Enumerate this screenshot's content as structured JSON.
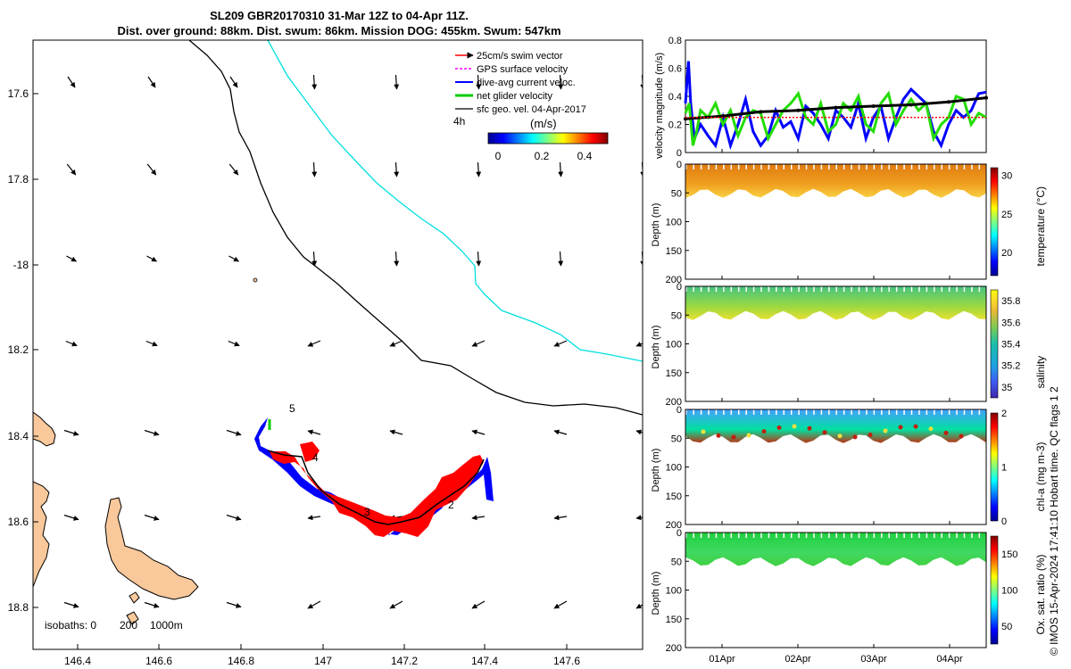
{
  "header": {
    "line1": "SL209 GBR20170310 31-Mar 12Z to 04-Apr 11Z.",
    "line2": "Dist. over ground: 88km. Dist. swum: 86km. Mission DOG: 455km. Swum: 547km"
  },
  "colors": {
    "swim": "#ff0000",
    "gps": "#ff00ff",
    "dive": "#0000ff",
    "net": "#00cc00",
    "geo": "#000000",
    "land": "#f9c89b",
    "isobath200": "#000000",
    "isobath1000": "#00e5e5"
  },
  "legend": {
    "items": [
      "25cm/s swim vector",
      "GPS surface velocity",
      "dive-avg current veloc.",
      "net glider velocity",
      "sfc geo. vel. 04-Apr-2017"
    ],
    "time_label": "4h",
    "colorbar_title": "(m/s)",
    "colorbar_ticks": [
      "0",
      "0.2",
      "0.4"
    ]
  },
  "isobaths": {
    "label": "isobaths: 0",
    "v1": "200",
    "v2": "1000m"
  },
  "axes": {
    "map_xticks": [
      "146.4",
      "146.6",
      "146.8",
      "147",
      "147.2",
      "147.4",
      "147.6"
    ],
    "map_yticks": [
      "17.6",
      "17.8",
      "-18",
      "18.2",
      "18.4",
      "18.6",
      "18.8"
    ],
    "time_ticks": [
      "01Apr",
      "02Apr",
      "03Apr",
      "04Apr"
    ],
    "depth_ticks": [
      "0",
      "50",
      "100",
      "150",
      "200"
    ]
  },
  "track_labels": [
    "5",
    "4",
    "3",
    "2"
  ],
  "side_text": "© IMOS 15-Apr-2024 17:41:10 Hobart time. QC flags 1  2",
  "chart_data": [
    {
      "type": "line",
      "title": "",
      "ylabel": "velocity magnitude (m/s)",
      "yticks": [
        "0",
        "0.2",
        "0.4",
        "0.6",
        "0.8"
      ],
      "ylim": [
        0,
        0.8
      ],
      "xlim": [
        0,
        4
      ],
      "series": [
        {
          "name": "dive-avg current veloc.",
          "color": "#0000ff",
          "x": [
            0,
            0.04,
            0.07,
            0.12,
            0.2,
            0.3,
            0.4,
            0.5,
            0.6,
            0.7,
            0.8,
            0.9,
            1.0,
            1.1,
            1.2,
            1.3,
            1.4,
            1.5,
            1.6,
            1.7,
            1.8,
            1.9,
            2.0,
            2.1,
            2.2,
            2.3,
            2.4,
            2.5,
            2.6,
            2.7,
            2.8,
            2.9,
            3.0,
            3.1,
            3.2,
            3.3,
            3.4,
            3.5,
            3.6,
            3.7,
            3.8,
            3.9,
            4.0
          ],
          "values": [
            0.35,
            0.65,
            0.35,
            0.1,
            0.2,
            0.12,
            0.05,
            0.25,
            0.05,
            0.2,
            0.38,
            0.15,
            0.05,
            0.12,
            0.3,
            0.18,
            0.22,
            0.1,
            0.33,
            0.28,
            0.2,
            0.1,
            0.3,
            0.25,
            0.18,
            0.35,
            0.1,
            0.25,
            0.33,
            0.1,
            0.25,
            0.38,
            0.45,
            0.4,
            0.35,
            0.15,
            0.05,
            0.2,
            0.3,
            0.25,
            0.3,
            0.42,
            0.43
          ]
        },
        {
          "name": "net glider velocity",
          "color": "#22dd00",
          "x": [
            0,
            0.05,
            0.1,
            0.15,
            0.2,
            0.3,
            0.4,
            0.5,
            0.6,
            0.7,
            0.8,
            0.9,
            1.0,
            1.1,
            1.2,
            1.3,
            1.4,
            1.5,
            1.6,
            1.7,
            1.8,
            1.9,
            2.0,
            2.1,
            2.2,
            2.3,
            2.4,
            2.5,
            2.6,
            2.7,
            2.8,
            2.9,
            3.0,
            3.1,
            3.2,
            3.3,
            3.4,
            3.5,
            3.6,
            3.7,
            3.8,
            3.9,
            4.0
          ],
          "values": [
            0.28,
            0.35,
            0.05,
            0.15,
            0.3,
            0.25,
            0.35,
            0.2,
            0.3,
            0.12,
            0.25,
            0.3,
            0.28,
            0.1,
            0.2,
            0.3,
            0.35,
            0.42,
            0.25,
            0.2,
            0.35,
            0.15,
            0.2,
            0.35,
            0.3,
            0.4,
            0.2,
            0.15,
            0.35,
            0.42,
            0.2,
            0.3,
            0.38,
            0.3,
            0.35,
            0.1,
            0.2,
            0.25,
            0.4,
            0.38,
            0.2,
            0.28,
            0.25
          ]
        },
        {
          "name": "sfc geo. vel.",
          "color": "#000000",
          "x": [
            0,
            0.5,
            1.0,
            1.5,
            2.0,
            2.5,
            3.0,
            3.5,
            4.0
          ],
          "values": [
            0.24,
            0.26,
            0.29,
            0.3,
            0.32,
            0.33,
            0.34,
            0.36,
            0.39
          ]
        },
        {
          "name": "swim",
          "color": "#ff0000",
          "x": [
            0,
            1,
            2,
            3,
            4
          ],
          "values": [
            0.25,
            0.25,
            0.25,
            0.25,
            0.25
          ]
        }
      ]
    },
    {
      "type": "heatmap",
      "ylabel": "Depth (m)",
      "colorbar_label": "temperature (°C)",
      "colorbar_ticks": [
        "30",
        "25",
        "20"
      ],
      "clim": [
        17,
        31
      ],
      "surface": 29.2,
      "deep": 26.2,
      "bottom_depth": 60
    },
    {
      "type": "heatmap",
      "ylabel": "Depth (m)",
      "colorbar_label": "salinity",
      "colorbar_ticks": [
        "35.8",
        "35.6",
        "35.4",
        "35.2",
        "35"
      ],
      "clim": [
        34.9,
        35.9
      ],
      "surface": 35.25,
      "deep": 35.5,
      "bottom_depth": 60
    },
    {
      "type": "heatmap",
      "ylabel": "Depth (m)",
      "colorbar_label": "chl-a (mg m-3)",
      "colorbar_ticks": [
        "2",
        "1",
        "0"
      ],
      "clim": [
        0,
        2
      ],
      "surface": 0.55,
      "deep": 1.9,
      "bottom_depth": 60
    },
    {
      "type": "heatmap",
      "ylabel": "Depth (m)",
      "colorbar_label": "Ox. sat. ratio (%)",
      "colorbar_ticks": [
        "150",
        "100",
        "50"
      ],
      "clim": [
        25,
        175
      ],
      "surface": 95,
      "deep": 93,
      "bottom_depth": 60
    }
  ]
}
